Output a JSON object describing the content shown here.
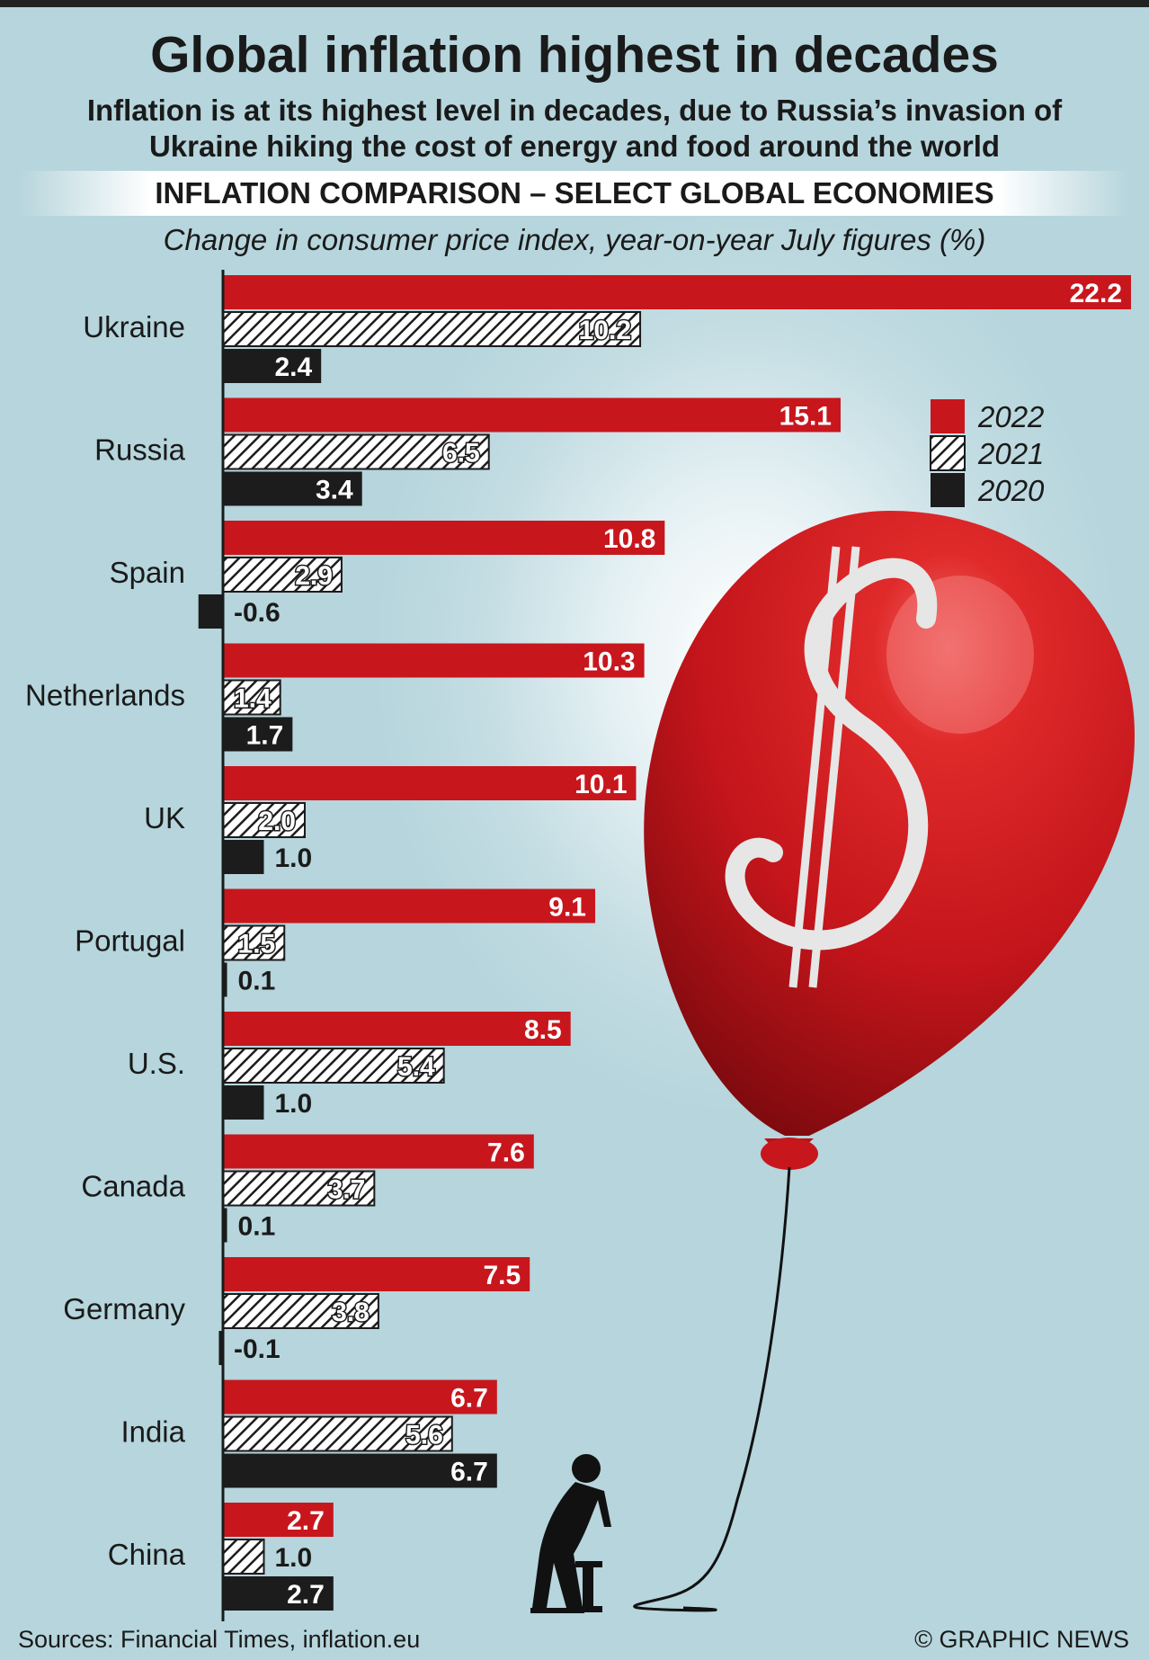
{
  "header": {
    "title": "Global inflation highest in decades",
    "subtitle": "Inflation is at its highest level in decades, due to Russia’s invasion of Ukraine hiking the cost of energy and food around the world",
    "banner": "INFLATION COMPARISON – SELECT GLOBAL ECONOMIES",
    "units": "Change in consumer price index, year-on-year July figures (%)"
  },
  "footer": {
    "sources": "Sources: Financial Times, inflation.eu",
    "credit": "© GRAPHIC NEWS"
  },
  "colors": {
    "series_2022": "#c8161d",
    "series_2021_hatch": "#1c1c1c",
    "series_2020": "#1c1c1c",
    "balloon": "#c8161d",
    "background": "#c3dde3"
  },
  "illustration": {
    "icons": [
      "dollar-balloon-icon",
      "man-with-pump-icon"
    ]
  },
  "chart_data": {
    "type": "bar",
    "orientation": "horizontal",
    "categories": [
      "Ukraine",
      "Russia",
      "Spain",
      "Netherlands",
      "UK",
      "Portugal",
      "U.S.",
      "Canada",
      "Germany",
      "India",
      "China"
    ],
    "series": [
      {
        "name": "2022",
        "style": "solid-red",
        "values": [
          22.2,
          15.1,
          10.8,
          10.3,
          10.1,
          9.1,
          8.5,
          7.6,
          7.5,
          6.7,
          2.7
        ],
        "labels": [
          "22.2",
          "15.1",
          "10.8",
          "10.3",
          "10.1",
          "9.1",
          "8.5",
          "7.6",
          "7.5",
          "6.7",
          "2.7"
        ]
      },
      {
        "name": "2021",
        "style": "hatched",
        "values": [
          10.2,
          6.5,
          2.9,
          1.4,
          2.0,
          1.5,
          5.4,
          3.7,
          3.8,
          5.6,
          1.0
        ],
        "labels": [
          "10.2",
          "6.5",
          "2.9",
          "1.4",
          "2.0",
          "1.5",
          "5.4",
          "3.7",
          "3.8",
          "5.6",
          "1.0"
        ]
      },
      {
        "name": "2020",
        "style": "solid-black",
        "values": [
          2.4,
          3.4,
          -0.6,
          1.7,
          1.0,
          0.1,
          1.0,
          0.1,
          -0.1,
          6.7,
          2.7
        ],
        "labels": [
          "2.4",
          "3.4",
          "-0.6",
          "1.7",
          "1.0",
          "0.1",
          "1.0",
          "0.1",
          "-0.1",
          "6.7",
          "2.7"
        ]
      }
    ],
    "legend_position": "top-right",
    "value_labels": true,
    "grid": false
  }
}
